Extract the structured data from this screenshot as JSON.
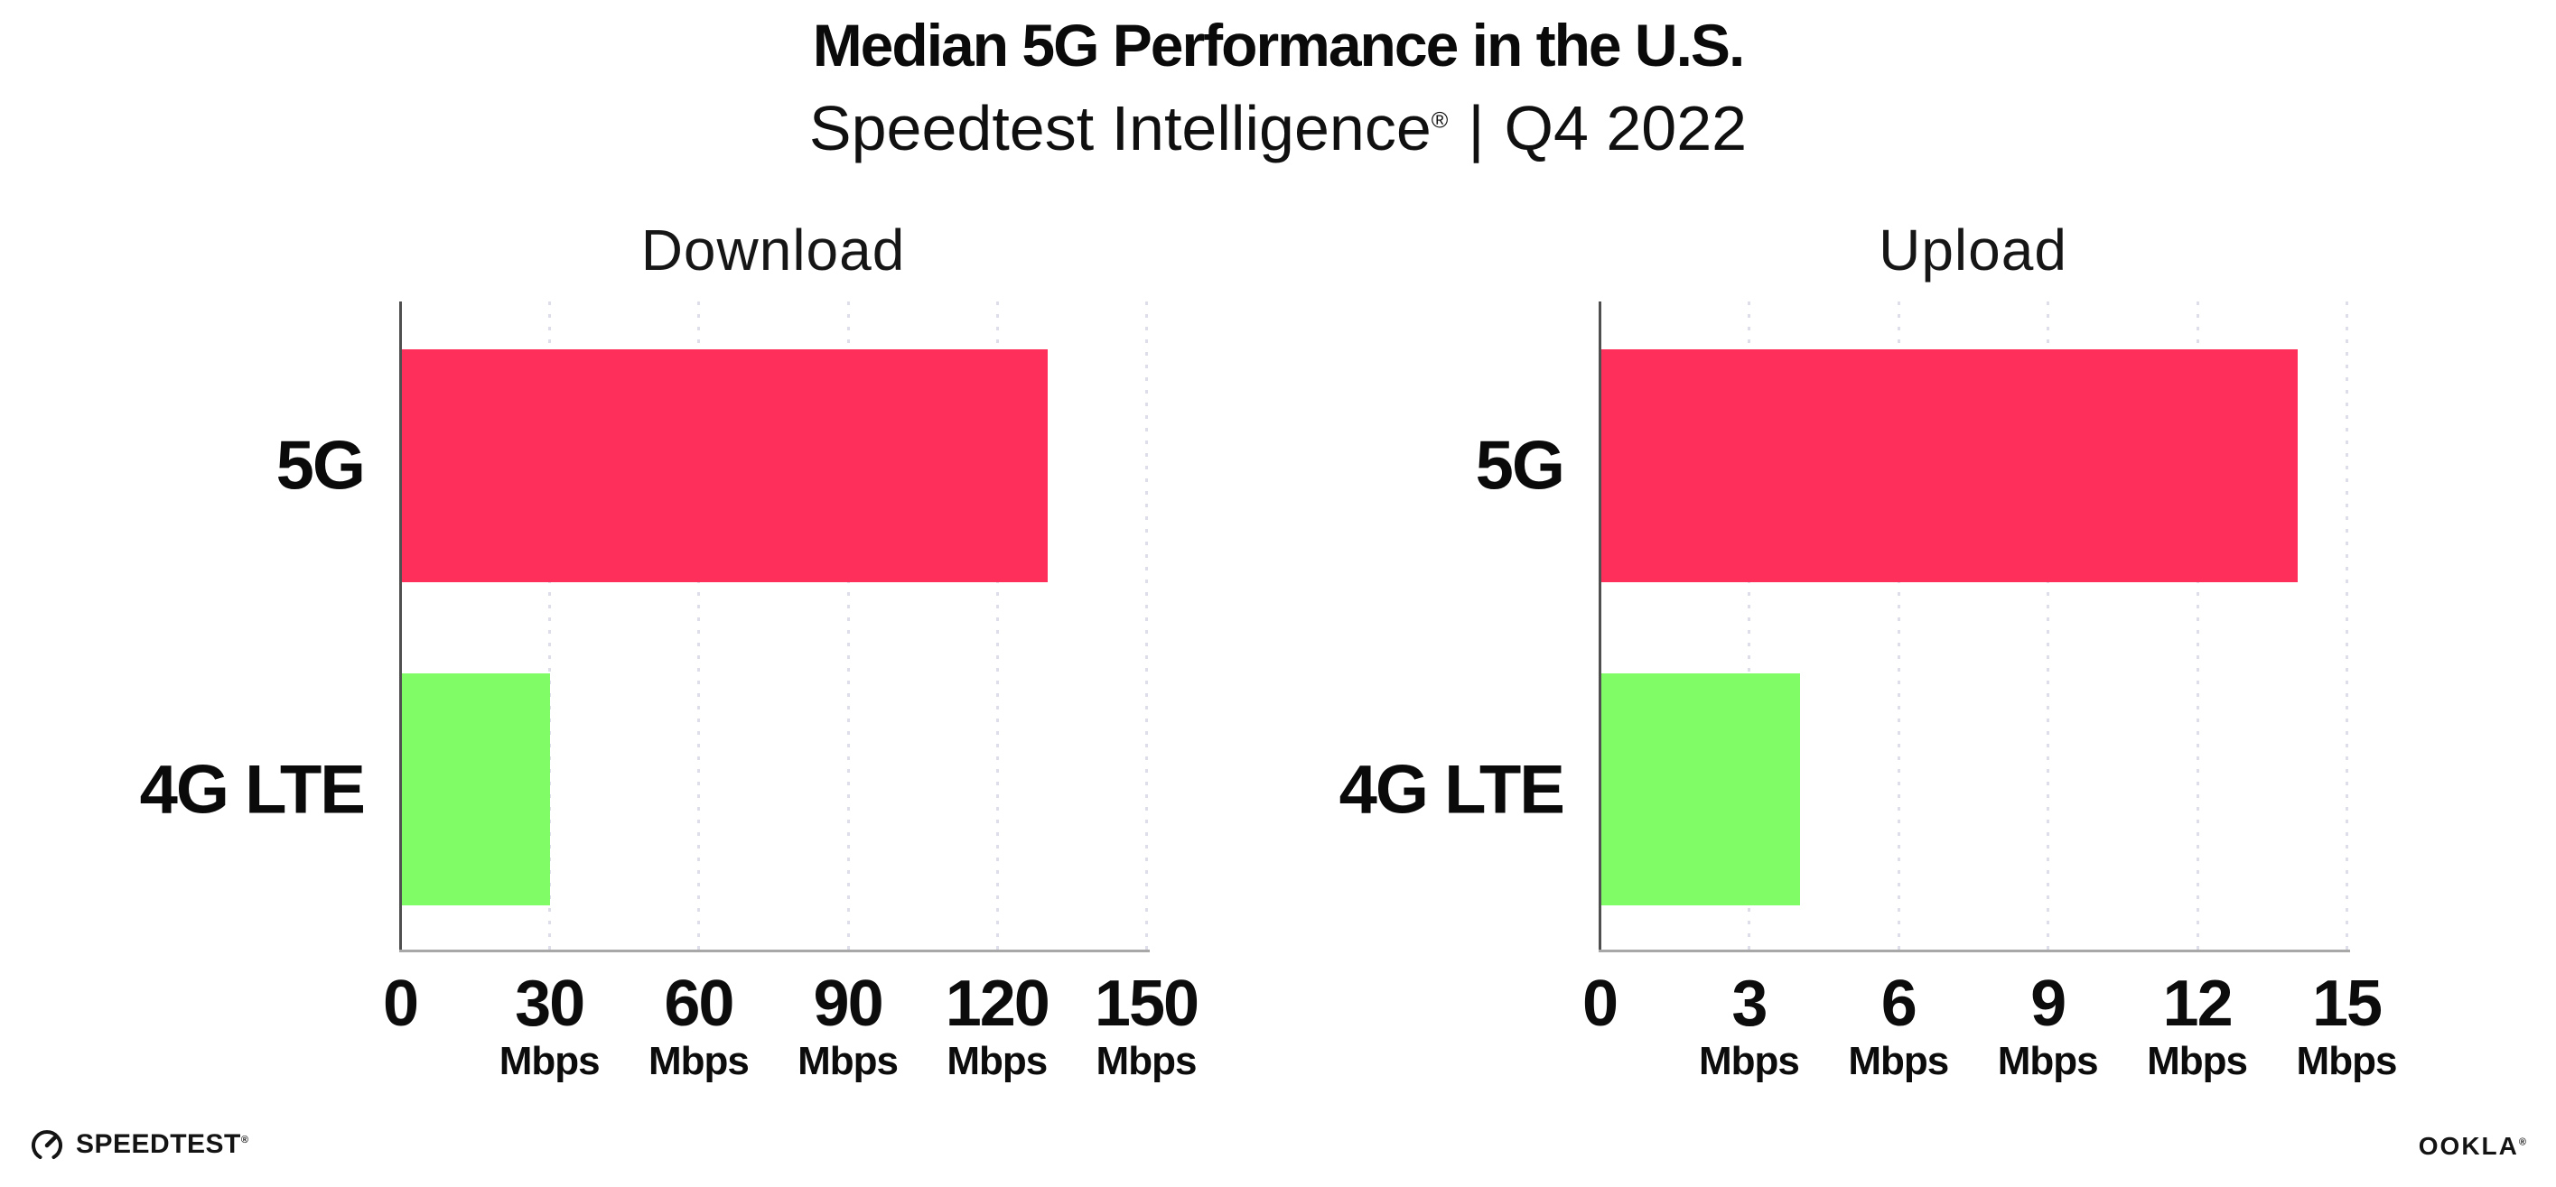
{
  "page": {
    "title": "Median 5G Performance in the U.S.",
    "subtitle": {
      "brand": "Speedtest Intelligence",
      "registered_mark": "®",
      "divider": "|",
      "period": "Q4 2022"
    }
  },
  "chart_data": [
    {
      "type": "bar",
      "orientation": "horizontal",
      "title": "Download",
      "categories": [
        "5G",
        "4G LTE"
      ],
      "values": [
        130,
        30
      ],
      "unit": "Mbps",
      "xlim": [
        0,
        150
      ],
      "xticks": [
        0,
        30,
        60,
        90,
        120,
        150
      ],
      "grid": "vertical-dotted",
      "legend": "none",
      "bar_colors": [
        "#FF2F5B",
        "#80FC66"
      ]
    },
    {
      "type": "bar",
      "orientation": "horizontal",
      "title": "Upload",
      "categories": [
        "5G",
        "4G LTE"
      ],
      "values": [
        14,
        4
      ],
      "unit": "Mbps",
      "xlim": [
        0,
        15
      ],
      "xticks": [
        0,
        3,
        6,
        9,
        12,
        15
      ],
      "grid": "vertical-dotted",
      "legend": "none",
      "bar_colors": [
        "#FF2F5B",
        "#80FC66"
      ]
    }
  ],
  "footer": {
    "speedtest_logo": {
      "label": "SPEEDTEST",
      "mark": "®"
    },
    "ookla_logo": {
      "label": "OOKLA",
      "mark": "®"
    }
  },
  "colors": {
    "bar_5g": "#FF2F5B",
    "bar_4g_lte": "#80FC66",
    "gridline": "#DEDEEA",
    "x_axis": "#A8A8A8",
    "y_axis": "#4F4F4F",
    "text": "#0F0F0F",
    "background": "#FFFFFF"
  }
}
